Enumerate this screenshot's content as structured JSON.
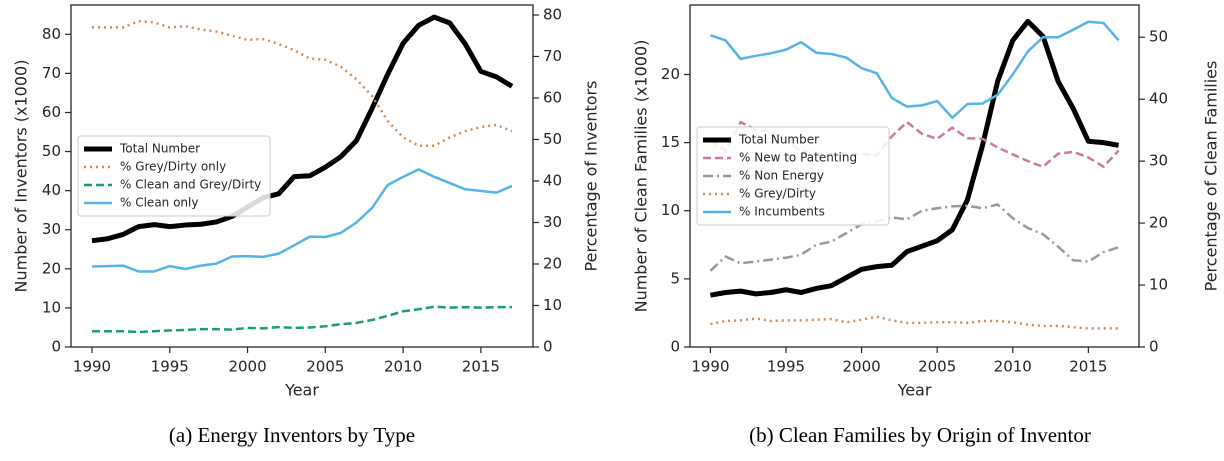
{
  "chart_data": [
    {
      "type": "line",
      "caption": "(a) Energy Inventors by Type",
      "xlabel": "Year",
      "ylabel": "Number of Inventors (x1000)",
      "y2label": "Percentage of Inventors",
      "x": [
        1990,
        1991,
        1992,
        1993,
        1994,
        1995,
        1996,
        1997,
        1998,
        1999,
        2000,
        2001,
        2002,
        2003,
        2004,
        2005,
        2006,
        2007,
        2008,
        2009,
        2010,
        2011,
        2012,
        2013,
        2014,
        2015,
        2016,
        2017
      ],
      "xlim": [
        1988.65,
        2018.35
      ],
      "xticks": [
        1990,
        1995,
        2000,
        2005,
        2010,
        2015
      ],
      "ylim": [
        0,
        87.5
      ],
      "yticks": [
        0,
        10,
        20,
        30,
        40,
        50,
        60,
        70,
        80
      ],
      "y2lim": [
        0,
        82.4
      ],
      "y2ticks": [
        0,
        10,
        20,
        30,
        40,
        50,
        60,
        70,
        80
      ],
      "legend": "center left",
      "series": [
        {
          "name": "Total Number",
          "color": "#000000",
          "linestyle": "solid",
          "linewidth": 5,
          "axis": "y",
          "values": [
            27.2,
            27.7,
            28.8,
            30.8,
            31.3,
            30.8,
            31.2,
            31.4,
            32,
            33.4,
            35.8,
            38.2,
            39.2,
            43.6,
            43.8,
            46,
            48.7,
            52.8,
            61,
            69.7,
            77.7,
            82.3,
            84.4,
            82.9,
            77.5,
            70.5,
            69.1,
            66.7
          ]
        },
        {
          "name": "% Grey/Dirty only",
          "color": "#d08c5c",
          "linestyle": "dotted",
          "linewidth": 2.5,
          "axis": "y2",
          "values": [
            77,
            77,
            77,
            78.5,
            78.2,
            77,
            77.3,
            76.5,
            76,
            75,
            74,
            74.2,
            73,
            71.5,
            69.5,
            69.2,
            67.5,
            64.5,
            60.5,
            54.5,
            50.5,
            48.5,
            48.5,
            50.5,
            52,
            53,
            53.5,
            52
          ]
        },
        {
          "name": "% Clean and Grey/Dirty",
          "color": "#1b9e77",
          "linestyle": "dashed",
          "linewidth": 2.5,
          "axis": "y2",
          "values": [
            3.8,
            3.8,
            3.8,
            3.6,
            3.8,
            4,
            4.1,
            4.3,
            4.3,
            4.2,
            4.6,
            4.5,
            4.8,
            4.6,
            4.7,
            5,
            5.5,
            5.8,
            6.5,
            7.5,
            8.6,
            9.1,
            9.7,
            9.5,
            9.6,
            9.5,
            9.6,
            9.6
          ]
        },
        {
          "name": "% Clean only",
          "color": "#56b4e9",
          "linestyle": "solid",
          "linewidth": 2.5,
          "axis": "y2",
          "values": [
            19.4,
            19.5,
            19.6,
            18.2,
            18.2,
            19.5,
            18.8,
            19.6,
            20.1,
            21.8,
            21.9,
            21.7,
            22.5,
            24.5,
            26.6,
            26.5,
            27.5,
            30,
            33.5,
            39,
            41,
            42.8,
            41,
            39.5,
            38,
            37.6,
            37.2,
            38.8
          ]
        }
      ]
    },
    {
      "type": "line",
      "caption": "(b) Clean Families by Origin of Inventor",
      "xlabel": "Year",
      "ylabel": "Number of Clean Families (x1000)",
      "y2label": "Percentage of Clean Families",
      "x": [
        1990,
        1991,
        1992,
        1993,
        1994,
        1995,
        1996,
        1997,
        1998,
        1999,
        2000,
        2001,
        2002,
        2003,
        2004,
        2005,
        2006,
        2007,
        2008,
        2009,
        2010,
        2011,
        2012,
        2013,
        2014,
        2015,
        2016,
        2017
      ],
      "xlim": [
        1988.65,
        2018.35
      ],
      "xticks": [
        1990,
        1995,
        2000,
        2005,
        2010,
        2015
      ],
      "ylim": [
        0,
        25.1
      ],
      "yticks": [
        0,
        5,
        10,
        15,
        20
      ],
      "y2lim": [
        0,
        55.2
      ],
      "y2ticks": [
        0,
        10,
        20,
        30,
        40,
        50
      ],
      "legend": "center left",
      "series": [
        {
          "name": "Total Number",
          "color": "#000000",
          "linestyle": "solid",
          "linewidth": 5,
          "axis": "y",
          "values": [
            3.8,
            4.0,
            4.1,
            3.9,
            4.0,
            4.2,
            4.0,
            4.3,
            4.5,
            5.1,
            5.7,
            5.9,
            6.0,
            7.0,
            7.4,
            7.8,
            8.6,
            10.8,
            14.8,
            19.5,
            22.5,
            23.9,
            22.8,
            19.5,
            17.5,
            15.1,
            15.0,
            14.8
          ]
        },
        {
          "name": "% New to Patenting",
          "color": "#cc79a7",
          "linestyle": "dashed",
          "linewidth": 2.5,
          "axis": "y2",
          "values": [
            33.4,
            31.7,
            36.3,
            35.1,
            34.7,
            33.4,
            31.6,
            31.3,
            31.2,
            31.2,
            31.2,
            30.9,
            34,
            36.3,
            34.4,
            33.6,
            35.4,
            33.7,
            33.6,
            32.2,
            31.1,
            30,
            29.1,
            31.2,
            31.5,
            30.6,
            29.1,
            31.7
          ]
        },
        {
          "name": "% Non Energy",
          "color": "#999999",
          "linestyle": "dashdot",
          "linewidth": 2.5,
          "axis": "y2",
          "values": [
            12.3,
            14.6,
            13.5,
            13.8,
            14.1,
            14.4,
            14.9,
            16.5,
            17,
            18.4,
            19.8,
            20.3,
            20.9,
            20.6,
            22,
            22.4,
            22.7,
            22.8,
            22.4,
            23,
            20.8,
            19.2,
            18.2,
            16.2,
            14,
            13.8,
            15.3,
            16.1
          ]
        },
        {
          "name": "% Grey/Dirty",
          "color": "#d08c5c",
          "linestyle": "dotted",
          "linewidth": 2.5,
          "axis": "y2",
          "values": [
            3.7,
            4.2,
            4.3,
            4.6,
            4.2,
            4.3,
            4.3,
            4.4,
            4.5,
            4.0,
            4.4,
            4.9,
            4.3,
            3.9,
            3.9,
            4.0,
            4.0,
            3.9,
            4.2,
            4.2,
            4.0,
            3.6,
            3.4,
            3.4,
            3.2,
            3.0,
            3.0,
            3.0
          ]
        },
        {
          "name": "% Incumbents",
          "color": "#56b4e9",
          "linestyle": "solid",
          "linewidth": 2.5,
          "axis": "y2",
          "values": [
            50.3,
            49.5,
            46.5,
            47,
            47.4,
            48,
            49.2,
            47.5,
            47.3,
            46.7,
            45,
            44.2,
            40.2,
            38.8,
            39,
            39.7,
            37,
            39.2,
            39.3,
            40.7,
            44,
            47.7,
            50,
            50,
            51.2,
            52.5,
            52.3,
            49.5
          ]
        }
      ]
    }
  ]
}
